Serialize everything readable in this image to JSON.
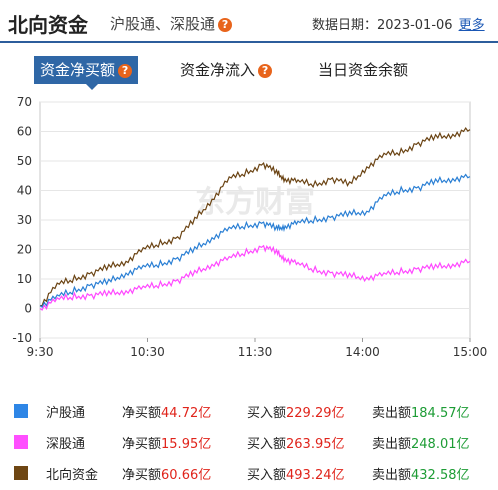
{
  "header": {
    "title": "北向资金",
    "subtitle": "沪股通、深股通",
    "date_label": "数据日期：",
    "date": "2023-01-06",
    "more": "更多"
  },
  "tabs": [
    {
      "label": "资金净买额",
      "active": true
    },
    {
      "label": "资金净流入",
      "active": false
    },
    {
      "label": "当日资金余额",
      "active": false
    }
  ],
  "chart_data": {
    "type": "line",
    "x_ticks": [
      "9:30",
      "10:30",
      "11:30",
      "14:00",
      "15:00"
    ],
    "y_ticks": [
      70,
      60,
      50,
      40,
      30,
      20,
      10,
      0,
      -10
    ],
    "ylim": [
      -10,
      70
    ],
    "grid": "horizontal",
    "watermark": "东方财富",
    "series": [
      {
        "name": "北向资金",
        "color": "#6b4414",
        "values": [
          [
            0,
            1
          ],
          [
            0.2,
            8
          ],
          [
            0.4,
            10
          ],
          [
            0.6,
            12
          ],
          [
            0.8,
            14
          ],
          [
            1.0,
            16
          ],
          [
            1.2,
            20
          ],
          [
            1.4,
            22
          ],
          [
            1.6,
            24
          ],
          [
            1.8,
            30
          ],
          [
            2.0,
            37
          ],
          [
            2.2,
            44
          ],
          [
            2.4,
            46
          ],
          [
            2.6,
            49
          ],
          [
            2.75,
            46
          ],
          [
            2.85,
            44
          ],
          [
            3.0,
            43
          ],
          [
            3.2,
            42
          ],
          [
            3.4,
            44
          ],
          [
            3.6,
            42
          ],
          [
            3.8,
            48
          ],
          [
            4.0,
            52
          ],
          [
            4.2,
            53
          ],
          [
            4.4,
            56
          ],
          [
            4.6,
            58
          ],
          [
            4.8,
            59
          ],
          [
            5.0,
            60.66
          ]
        ]
      },
      {
        "name": "沪股通",
        "color": "#2a7fd4",
        "values": [
          [
            0,
            1
          ],
          [
            0.2,
            4
          ],
          [
            0.4,
            6
          ],
          [
            0.6,
            8
          ],
          [
            0.8,
            9
          ],
          [
            1.0,
            12
          ],
          [
            1.2,
            14
          ],
          [
            1.4,
            15
          ],
          [
            1.6,
            17
          ],
          [
            1.8,
            20
          ],
          [
            2.0,
            24
          ],
          [
            2.2,
            27
          ],
          [
            2.4,
            28
          ],
          [
            2.6,
            29
          ],
          [
            2.75,
            27
          ],
          [
            2.85,
            28
          ],
          [
            3.0,
            29
          ],
          [
            3.2,
            30
          ],
          [
            3.4,
            31
          ],
          [
            3.6,
            32
          ],
          [
            3.8,
            33
          ],
          [
            4.0,
            38
          ],
          [
            4.2,
            40
          ],
          [
            4.4,
            41
          ],
          [
            4.6,
            43
          ],
          [
            4.8,
            44
          ],
          [
            5.0,
            44.72
          ]
        ]
      },
      {
        "name": "深股通",
        "color": "#ff48ff",
        "values": [
          [
            0,
            0
          ],
          [
            0.2,
            3
          ],
          [
            0.4,
            4
          ],
          [
            0.6,
            4.5
          ],
          [
            0.8,
            5
          ],
          [
            1.0,
            6
          ],
          [
            1.2,
            7
          ],
          [
            1.4,
            8
          ],
          [
            1.6,
            9.5
          ],
          [
            1.8,
            12
          ],
          [
            2.0,
            15
          ],
          [
            2.2,
            17
          ],
          [
            2.4,
            19
          ],
          [
            2.6,
            21
          ],
          [
            2.75,
            19
          ],
          [
            2.85,
            17
          ],
          [
            3.0,
            15
          ],
          [
            3.2,
            13
          ],
          [
            3.4,
            12
          ],
          [
            3.6,
            11
          ],
          [
            3.8,
            10.5
          ],
          [
            4.0,
            11.5
          ],
          [
            4.2,
            12.5
          ],
          [
            4.4,
            13.5
          ],
          [
            4.6,
            14
          ],
          [
            4.8,
            15
          ],
          [
            5.0,
            15.95
          ]
        ]
      }
    ]
  },
  "legend": [
    {
      "name": "沪股通",
      "color": "#2e86e6",
      "net_label": "净买额",
      "net": "44.72亿",
      "buy_label": "买入额",
      "buy": "229.29亿",
      "sell_label": "卖出额",
      "sell": "184.57亿"
    },
    {
      "name": "深股通",
      "color": "#ff4fff",
      "net_label": "净买额",
      "net": "15.95亿",
      "buy_label": "买入额",
      "buy": "263.95亿",
      "sell_label": "卖出额",
      "sell": "248.01亿"
    },
    {
      "name": "北向资金",
      "color": "#6e4613",
      "net_label": "净买额",
      "net": "60.66亿",
      "buy_label": "买入额",
      "buy": "493.24亿",
      "sell_label": "卖出额",
      "sell": "432.58亿"
    }
  ]
}
